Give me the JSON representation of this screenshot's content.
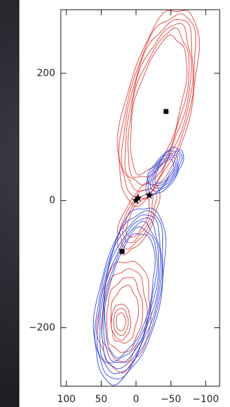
{
  "chart_data": {
    "type": "contour",
    "xlim": [
      108,
      -120
    ],
    "ylim": [
      -292,
      300
    ],
    "xticks": [
      100,
      50,
      0,
      {
        "value": -50,
        "label": "−50"
      },
      {
        "value": -100,
        "label": "−100"
      }
    ],
    "yticks": [
      200,
      0,
      {
        "value": -200,
        "label": "−200"
      }
    ],
    "squares": {
      "x": [
        -43,
        20
      ],
      "y": [
        140,
        -80
      ]
    },
    "stars": {
      "x": [
        0,
        -3,
        -19
      ],
      "y": [
        0,
        4,
        8
      ]
    }
  }
}
